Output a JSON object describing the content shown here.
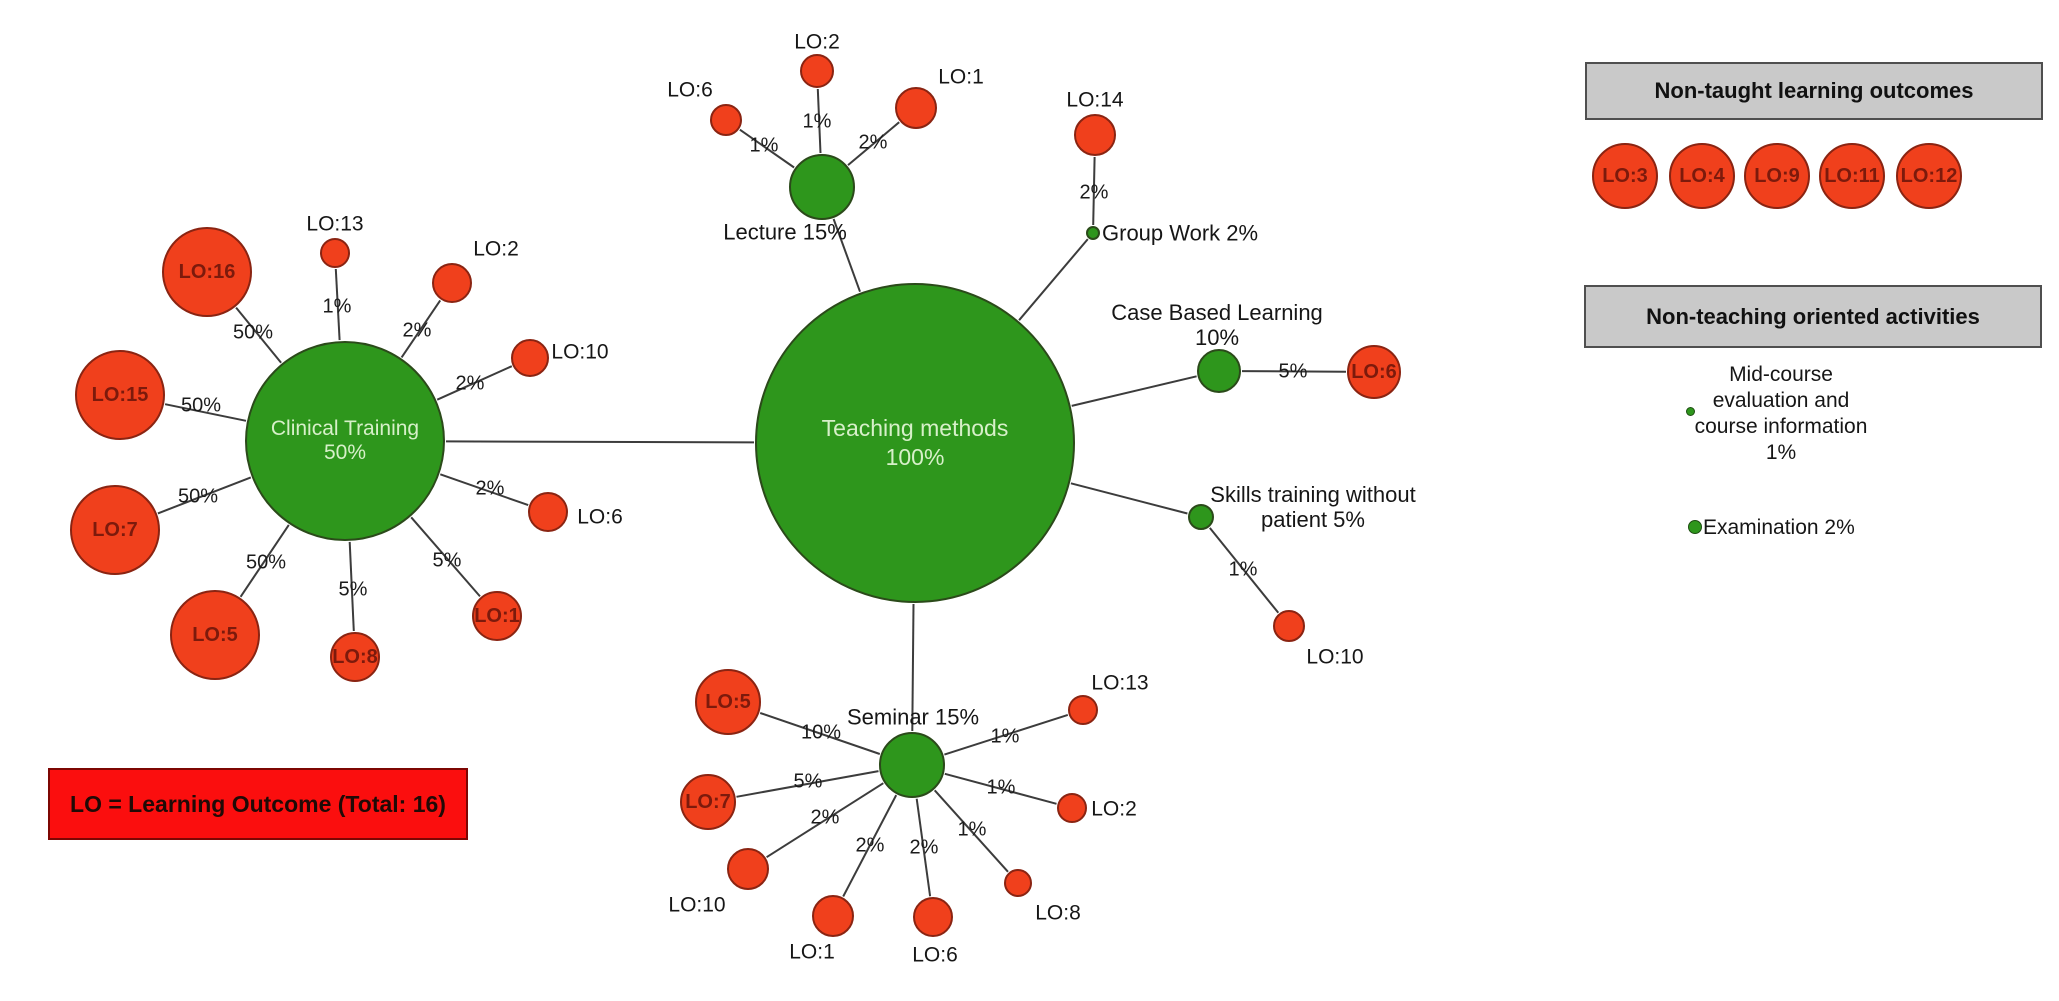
{
  "colors": {
    "green": "#2e961c",
    "red": "#f0401c",
    "legend_red": "#fb0e0e",
    "panel_grey": "#c9c9c9",
    "inside_label": "#7c1a0c",
    "light_green_text": "#d7f0c9"
  },
  "legend_box": {
    "text": "LO = Learning Outcome (Total: 16)"
  },
  "panels": {
    "non_taught": {
      "title": "Non-taught learning outcomes",
      "items": [
        "LO:3",
        "LO:4",
        "LO:9",
        "LO:11",
        "LO:12"
      ]
    },
    "non_teaching": {
      "title": "Non-teaching oriented activities",
      "activities": [
        {
          "label": "Mid-course\nevaluation and\ncourse information\n1%"
        },
        {
          "label": "Examination 2%"
        }
      ]
    }
  },
  "diagram": {
    "root": {
      "label": "Teaching methods\n100%"
    },
    "methods": [
      {
        "id": "lecture",
        "label": "Lecture 15%",
        "children": [
          {
            "lo": "LO:6",
            "pct": "1%"
          },
          {
            "lo": "LO:2",
            "pct": "1%"
          },
          {
            "lo": "LO:1",
            "pct": "2%"
          }
        ]
      },
      {
        "id": "clinical-training",
        "label": "Clinical Training 50%",
        "children": [
          {
            "lo": "LO:16",
            "pct": "50%"
          },
          {
            "lo": "LO:13",
            "pct": "1%"
          },
          {
            "lo": "LO:2",
            "pct": "2%"
          },
          {
            "lo": "LO:10",
            "pct": "2%"
          },
          {
            "lo": "LO:15",
            "pct": "50%"
          },
          {
            "lo": "LO:6",
            "pct": "2%"
          },
          {
            "lo": "LO:7",
            "pct": "50%"
          },
          {
            "lo": "LO:1",
            "pct": "5%"
          },
          {
            "lo": "LO:5",
            "pct": "50%"
          },
          {
            "lo": "LO:8",
            "pct": "5%"
          }
        ]
      },
      {
        "id": "seminar",
        "label": "Seminar 15%",
        "children": [
          {
            "lo": "LO:5",
            "pct": "10%"
          },
          {
            "lo": "LO:7",
            "pct": "5%"
          },
          {
            "lo": "LO:10",
            "pct": "2%"
          },
          {
            "lo": "LO:1",
            "pct": "2%"
          },
          {
            "lo": "LO:6",
            "pct": "2%"
          },
          {
            "lo": "LO:8",
            "pct": "1%"
          },
          {
            "lo": "LO:2",
            "pct": "1%"
          },
          {
            "lo": "LO:13",
            "pct": "1%"
          }
        ]
      },
      {
        "id": "group-work",
        "label": "Group Work 2%",
        "children": [
          {
            "lo": "LO:14",
            "pct": "2%"
          }
        ]
      },
      {
        "id": "case-based-learning",
        "label": "Case Based Learning\n10%",
        "children": [
          {
            "lo": "LO:6",
            "pct": "5%"
          }
        ]
      },
      {
        "id": "skills-training",
        "label": "Skills training without\npatient 5%",
        "children": [
          {
            "lo": "LO:10",
            "pct": "1%"
          }
        ]
      }
    ]
  }
}
